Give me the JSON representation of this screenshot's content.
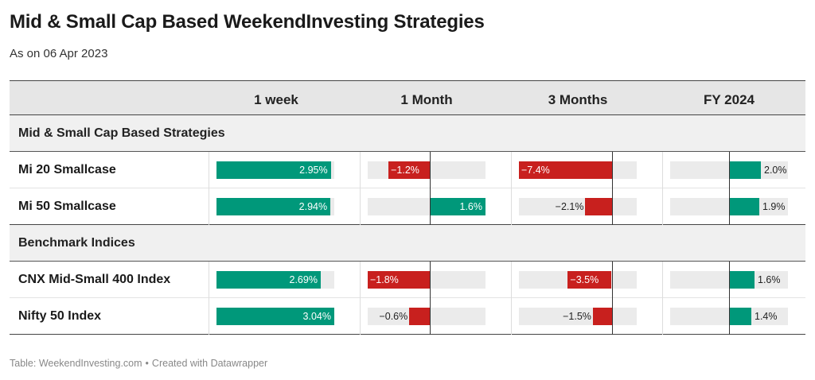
{
  "title": "Mid & Small Cap Based WeekendInvesting Strategies",
  "subtitle": "As on 06 Apr 2023",
  "footer": {
    "source": "Table: WeekendInvesting.com",
    "bullet": "•",
    "credit": "Created with Datawrapper"
  },
  "colors": {
    "positive": "#00987a",
    "negative": "#c8201e",
    "track": "#ebebeb",
    "header_bg": "#e6e6e6"
  },
  "chart_data": {
    "type": "table",
    "title": "Mid & Small Cap Based WeekendInvesting Strategies",
    "subtitle": "As on 06 Apr 2023",
    "columns": [
      "1 week",
      "1 Month",
      "3 Months",
      "FY 2024"
    ],
    "groups": [
      {
        "name": "Mid & Small Cap Based Strategies",
        "rows": [
          {
            "label": "Mi 20 Smallcase",
            "values": [
              2.95,
              -1.2,
              -7.4,
              2.0
            ],
            "display": [
              "2.95%",
              "−1.2%",
              "−7.4%",
              "2.0%"
            ]
          },
          {
            "label": "Mi 50 Smallcase",
            "values": [
              2.94,
              1.6,
              -2.1,
              1.9
            ],
            "display": [
              "2.94%",
              "1.6%",
              "−2.1%",
              "1.9%"
            ]
          }
        ]
      },
      {
        "name": "Benchmark Indices",
        "rows": [
          {
            "label": "CNX Mid-Small 400 Index",
            "values": [
              2.69,
              -1.8,
              -3.5,
              1.6
            ],
            "display": [
              "2.69%",
              "−1.8%",
              "−3.5%",
              "1.6%"
            ]
          },
          {
            "label": "Nifty 50 Index",
            "values": [
              3.04,
              -0.6,
              -1.5,
              1.4
            ],
            "display": [
              "3.04%",
              "−0.6%",
              "−1.5%",
              "1.4%"
            ]
          }
        ]
      }
    ],
    "column_ranges": [
      [
        0,
        3.04
      ],
      [
        -1.8,
        1.6
      ],
      [
        -7.4,
        2.0
      ],
      [
        0,
        7.4
      ]
    ]
  }
}
